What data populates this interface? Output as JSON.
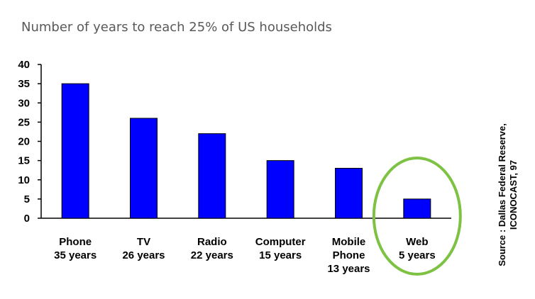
{
  "chart_data": {
    "type": "bar",
    "title": "Number of years to reach 25% of US households",
    "categories": [
      [
        "Phone",
        "35 years"
      ],
      [
        "TV",
        "26 years"
      ],
      [
        "Radio",
        "22 years"
      ],
      [
        "Computer",
        "15 years"
      ],
      [
        "Mobile",
        "Phone",
        "13 years"
      ],
      [
        "Web",
        "5 years"
      ]
    ],
    "values": [
      35,
      26,
      22,
      15,
      13,
      5
    ],
    "ylim": [
      0,
      40
    ],
    "yticks": [
      0,
      5,
      10,
      15,
      20,
      25,
      30,
      35,
      40
    ],
    "grid": false,
    "bar_color": "#0000FF",
    "highlight": {
      "category_index": 5,
      "color": "#7DC243"
    },
    "source": [
      "Source : Dallas Federal Reserve,",
      "ICONOCAST, 97"
    ]
  }
}
